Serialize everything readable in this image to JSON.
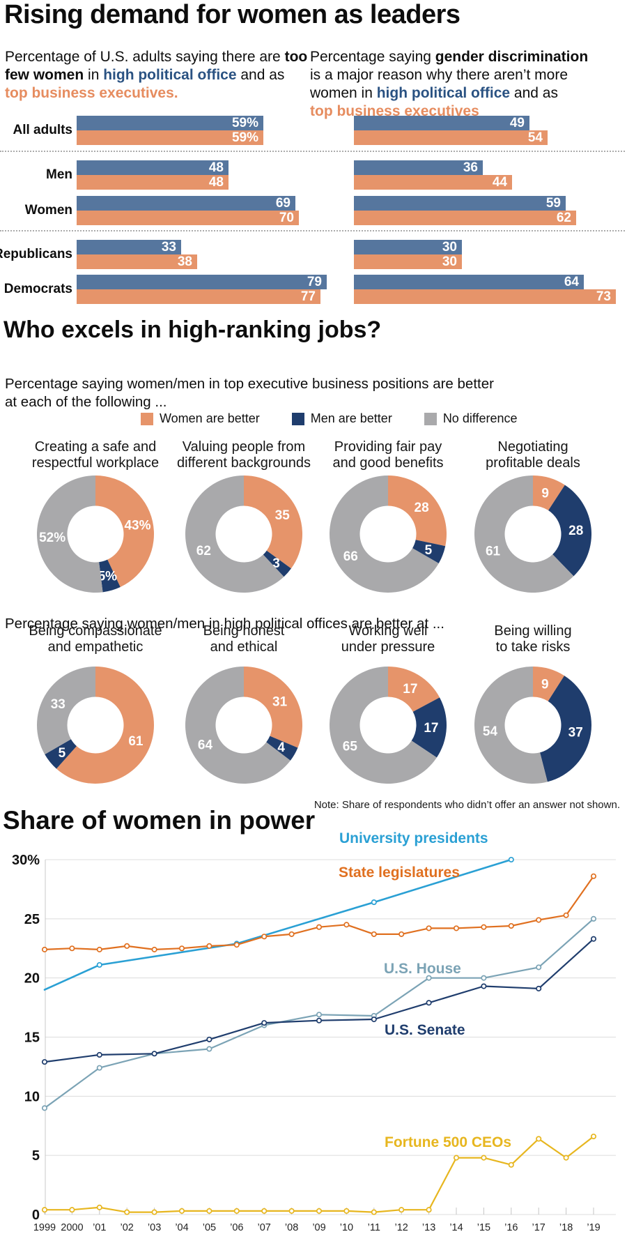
{
  "section1": {
    "title": "Rising demand for women as leaders",
    "left_subtitle": [
      {
        "t": "Percentage of U.S. adults saying there are ",
        "s": ""
      },
      {
        "t": "too\nfew women",
        "s": "b"
      },
      {
        "t": " in ",
        "s": ""
      },
      {
        "t": "high political office",
        "s": "blue"
      },
      {
        "t": " and as\n",
        "s": ""
      },
      {
        "t": "top business executives.",
        "s": "orange"
      }
    ],
    "right_subtitle": [
      {
        "t": "Percentage saying ",
        "s": ""
      },
      {
        "t": "gender discrimination",
        "s": "b"
      },
      {
        "t": "\nis a major reason why there aren’t more\nwomen in ",
        "s": ""
      },
      {
        "t": "high political office",
        "s": "blue"
      },
      {
        "t": " and as\n",
        "s": ""
      },
      {
        "t": "top business executives",
        "s": "orange"
      }
    ]
  },
  "section2": {
    "title": "Who excels in high-ranking jobs?",
    "subtitle": "Percentage saying women/men in top executive business positions are better\nat each of the following ...",
    "row2_subtitle": "Percentage saying women/men in high political offices are better at ...",
    "note": "Note: Share of respondents who didn’t offer an answer not shown."
  },
  "section3": {
    "title": "Share of women in power"
  },
  "chart_data": [
    {
      "type": "bar",
      "panel": "left",
      "title": "Percentage of U.S. adults saying there are too few women in high political office and as top business executives.",
      "categories": [
        "All adults",
        "Men",
        "Women",
        "Republicans",
        "Democrats"
      ],
      "series": [
        {
          "name": "high political office",
          "color": "#56769E",
          "values": [
            59,
            48,
            69,
            33,
            79
          ],
          "labels": [
            "59%",
            "48",
            "69",
            "33",
            "79"
          ]
        },
        {
          "name": "top business executives",
          "color": "#E6946A",
          "values": [
            59,
            48,
            70,
            38,
            77
          ],
          "labels": [
            "59%",
            "48",
            "70",
            "38",
            "77"
          ]
        }
      ],
      "xlim": [
        0,
        100
      ],
      "group_dividers_after": [
        "All adults",
        "Women"
      ]
    },
    {
      "type": "bar",
      "panel": "right",
      "title": "Percentage saying gender discrimination is a major reason why there aren’t more women in high political office and as top business executives",
      "categories": [
        "All adults",
        "Men",
        "Women",
        "Republicans",
        "Democrats"
      ],
      "series": [
        {
          "name": "high political office",
          "color": "#56769E",
          "values": [
            49,
            36,
            59,
            30,
            64
          ],
          "labels": [
            "49",
            "36",
            "59",
            "30",
            "64"
          ]
        },
        {
          "name": "top business executives",
          "color": "#E6946A",
          "values": [
            54,
            44,
            62,
            30,
            73
          ],
          "labels": [
            "54",
            "44",
            "62",
            "30",
            "73"
          ]
        }
      ],
      "xlim": [
        0,
        100
      ],
      "group_dividers_after": [
        "All adults",
        "Women"
      ]
    },
    {
      "type": "pie",
      "subtitle": "Percentage saying women/men in top executive business positions are better at each of the following ...",
      "slice_names": [
        "Women are better",
        "Men are better",
        "No difference"
      ],
      "colors": [
        "#E6946A",
        "#1F3D6D",
        "#A9A9AB"
      ],
      "donuts": [
        {
          "title": "Creating a safe and\nrespectful workplace",
          "values": [
            43,
            5,
            52
          ],
          "labels": [
            "43%",
            "5%",
            "52%"
          ]
        },
        {
          "title": "Valuing people from\ndifferent backgrounds",
          "values": [
            35,
            3,
            62
          ],
          "labels": [
            "35",
            "3",
            "62"
          ]
        },
        {
          "title": "Providing fair pay\nand good benefits",
          "values": [
            28,
            5,
            66
          ],
          "labels": [
            "28",
            "5",
            "66"
          ]
        },
        {
          "title": "Negotiating\nprofitable deals",
          "values": [
            9,
            28,
            61
          ],
          "labels": [
            "9",
            "28",
            "61"
          ]
        }
      ]
    },
    {
      "type": "pie",
      "subtitle": "Percentage saying women/men in high political offices are better at ...",
      "slice_names": [
        "Women are better",
        "Men are better",
        "No difference"
      ],
      "colors": [
        "#E6946A",
        "#1F3D6D",
        "#A9A9AB"
      ],
      "donuts": [
        {
          "title": "Being compassionate\nand empathetic",
          "values": [
            61,
            5,
            33
          ],
          "labels": [
            "61",
            "5",
            "33"
          ]
        },
        {
          "title": "Being honest\nand ethical",
          "values": [
            31,
            4,
            64
          ],
          "labels": [
            "31",
            "4",
            "64"
          ]
        },
        {
          "title": "Working well\nunder pressure",
          "values": [
            17,
            17,
            65
          ],
          "labels": [
            "17",
            "17",
            "65"
          ]
        },
        {
          "title": "Being willing\nto take risks",
          "values": [
            9,
            37,
            54
          ],
          "labels": [
            "9",
            "37",
            "54"
          ]
        }
      ]
    },
    {
      "type": "line",
      "title": "Share of women in power",
      "x_labels": [
        "1999",
        "2000",
        "’01",
        "’02",
        "’03",
        "’04",
        "’05",
        "’06",
        "’07",
        "’08",
        "’09",
        "’10",
        "’11",
        "’12",
        "’13",
        "’14",
        "’15",
        "’16",
        "’17",
        "’18",
        "’19"
      ],
      "ylim": [
        0,
        30
      ],
      "grid": true,
      "legend_position": "inline-labels",
      "yticks": [
        {
          "v": 30,
          "label": "30%"
        },
        {
          "v": 25,
          "label": "25"
        },
        {
          "v": 20,
          "label": "20"
        },
        {
          "v": 15,
          "label": "15"
        },
        {
          "v": 10,
          "label": "10"
        },
        {
          "v": 5,
          "label": "5"
        },
        {
          "v": 0,
          "label": "0"
        }
      ],
      "series": [
        {
          "name": "University presidents",
          "color": "#2AA0D4",
          "points": [
            [
              1999,
              19.0
            ],
            [
              2001,
              21.1
            ],
            [
              2006,
              22.9
            ],
            [
              2011,
              26.4
            ],
            [
              2016,
              30.0
            ]
          ],
          "marker_years": [
            2001,
            2006,
            2011,
            2016
          ]
        },
        {
          "name": "State legislatures",
          "color": "#E07020",
          "points": [
            [
              1999,
              22.4
            ],
            [
              2000,
              22.5
            ],
            [
              2001,
              22.4
            ],
            [
              2002,
              22.7
            ],
            [
              2003,
              22.4
            ],
            [
              2004,
              22.5
            ],
            [
              2005,
              22.7
            ],
            [
              2006,
              22.8
            ],
            [
              2007,
              23.5
            ],
            [
              2008,
              23.7
            ],
            [
              2009,
              24.3
            ],
            [
              2010,
              24.5
            ],
            [
              2011,
              23.7
            ],
            [
              2012,
              23.7
            ],
            [
              2013,
              24.2
            ],
            [
              2014,
              24.2
            ],
            [
              2015,
              24.3
            ],
            [
              2016,
              24.4
            ],
            [
              2017,
              24.9
            ],
            [
              2018,
              25.3
            ],
            [
              2019,
              28.6
            ]
          ]
        },
        {
          "name": "U.S. House",
          "color": "#7BA3B5",
          "points": [
            [
              1999,
              9.0
            ],
            [
              2001,
              12.4
            ],
            [
              2003,
              13.6
            ],
            [
              2005,
              14.0
            ],
            [
              2007,
              16.0
            ],
            [
              2009,
              16.9
            ],
            [
              2011,
              16.8
            ],
            [
              2013,
              20.0
            ],
            [
              2015,
              20.0
            ],
            [
              2017,
              20.9
            ],
            [
              2019,
              25.0
            ]
          ]
        },
        {
          "name": "U.S. Senate",
          "color": "#1F3D6D",
          "points": [
            [
              1999,
              12.9
            ],
            [
              2001,
              13.5
            ],
            [
              2003,
              13.6
            ],
            [
              2005,
              14.8
            ],
            [
              2007,
              16.2
            ],
            [
              2009,
              16.4
            ],
            [
              2011,
              16.5
            ],
            [
              2013,
              17.9
            ],
            [
              2015,
              19.3
            ],
            [
              2017,
              19.1
            ],
            [
              2019,
              23.3
            ]
          ]
        },
        {
          "name": "Fortune 500 CEOs",
          "color": "#E7B61F",
          "points": [
            [
              1999,
              0.4
            ],
            [
              2000,
              0.4
            ],
            [
              2001,
              0.6
            ],
            [
              2002,
              0.2
            ],
            [
              2003,
              0.2
            ],
            [
              2004,
              0.3
            ],
            [
              2005,
              0.3
            ],
            [
              2006,
              0.3
            ],
            [
              2007,
              0.3
            ],
            [
              2008,
              0.3
            ],
            [
              2009,
              0.3
            ],
            [
              2010,
              0.3
            ],
            [
              2011,
              0.2
            ],
            [
              2012,
              0.4
            ],
            [
              2013,
              0.4
            ],
            [
              2014,
              4.8
            ],
            [
              2015,
              4.8
            ],
            [
              2016,
              4.2
            ],
            [
              2017,
              6.4
            ],
            [
              2018,
              4.8
            ],
            [
              2019,
              6.6
            ]
          ]
        }
      ],
      "series_labels": [
        {
          "text": "University presidents",
          "color": "#2AA0D4",
          "x": 487,
          "y": 31
        },
        {
          "text": "State legislatures",
          "color": "#E07020",
          "x": 486,
          "y": 80
        },
        {
          "text": "U.S. House",
          "color": "#7BA3B5",
          "x": 551,
          "y": 218
        },
        {
          "text": "U.S. Senate",
          "color": "#1F3D6D",
          "x": 552,
          "y": 306
        },
        {
          "text": "Fortune 500 CEOs",
          "color": "#E7B61F",
          "x": 552,
          "y": 467
        }
      ]
    }
  ]
}
